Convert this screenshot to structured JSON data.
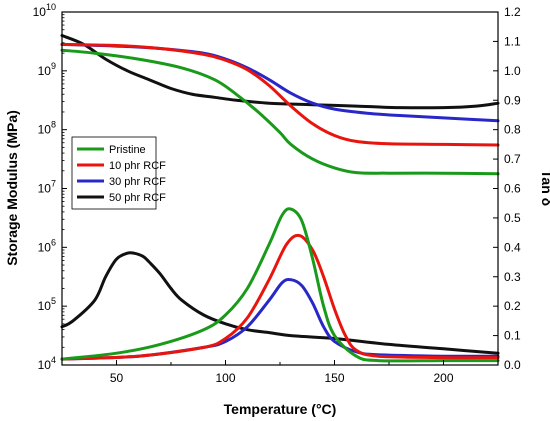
{
  "chart_data": {
    "type": "line",
    "xlabel": "Temperature (°C)",
    "ylabel_left": "Storage Modulus (MPa)",
    "ylabel_right": "Tan δ",
    "xlim": [
      25,
      225
    ],
    "xticks": [
      50,
      100,
      150,
      200
    ],
    "ylim_left_log10": [
      4,
      10
    ],
    "yscale_left": "log",
    "yticks_left": [
      {
        "base": "10",
        "exp": "4",
        "value": 4
      },
      {
        "base": "10",
        "exp": "5",
        "value": 5
      },
      {
        "base": "10",
        "exp": "6",
        "value": 6
      },
      {
        "base": "10",
        "exp": "7",
        "value": 7
      },
      {
        "base": "10",
        "exp": "8",
        "value": 8
      },
      {
        "base": "10",
        "exp": "9",
        "value": 9
      },
      {
        "base": "10",
        "exp": "10",
        "value": 10
      }
    ],
    "ylim_right": [
      0.0,
      1.2
    ],
    "yticks_right": [
      "0.0",
      "0.1",
      "0.2",
      "0.3",
      "0.4",
      "0.5",
      "0.6",
      "0.7",
      "0.8",
      "0.9",
      "1.0",
      "1.1",
      "1.2"
    ],
    "legend_position": "left-middle",
    "series": [
      {
        "name": "Pristine",
        "color": "#1a9a1a",
        "storage_modulus_log10": {
          "x": [
            25,
            40,
            60,
            80,
            95,
            105,
            115,
            125,
            130,
            140,
            150,
            160,
            175,
            200,
            225
          ],
          "y": [
            9.35,
            9.3,
            9.2,
            9.05,
            8.85,
            8.6,
            8.3,
            7.95,
            7.75,
            7.5,
            7.35,
            7.27,
            7.26,
            7.26,
            7.25
          ]
        },
        "tan_delta": {
          "x": [
            25,
            50,
            70,
            90,
            100,
            110,
            120,
            126,
            130,
            135,
            140,
            145,
            150,
            160,
            170,
            200,
            225
          ],
          "y": [
            0.02,
            0.04,
            0.07,
            0.12,
            0.17,
            0.26,
            0.41,
            0.51,
            0.53,
            0.49,
            0.36,
            0.2,
            0.1,
            0.03,
            0.015,
            0.015,
            0.015
          ]
        }
      },
      {
        "name": "10 phr RCF",
        "color": "#e8150f",
        "storage_modulus_log10": {
          "x": [
            25,
            50,
            70,
            90,
            100,
            110,
            120,
            130,
            140,
            150,
            160,
            175,
            200,
            225
          ],
          "y": [
            9.45,
            9.43,
            9.38,
            9.28,
            9.18,
            9.02,
            8.75,
            8.4,
            8.1,
            7.9,
            7.8,
            7.76,
            7.75,
            7.74
          ]
        },
        "tan_delta": {
          "x": [
            25,
            60,
            90,
            100,
            110,
            120,
            128,
            134,
            140,
            145,
            150,
            155,
            160,
            170,
            200,
            225
          ],
          "y": [
            0.02,
            0.03,
            0.06,
            0.09,
            0.16,
            0.29,
            0.41,
            0.44,
            0.39,
            0.3,
            0.19,
            0.1,
            0.05,
            0.03,
            0.025,
            0.025
          ]
        }
      },
      {
        "name": "30 phr RCF",
        "color": "#2a27c8",
        "storage_modulus_log10": {
          "x": [
            25,
            50,
            70,
            90,
            100,
            110,
            120,
            130,
            140,
            150,
            165,
            180,
            200,
            225
          ],
          "y": [
            9.45,
            9.42,
            9.38,
            9.3,
            9.2,
            9.05,
            8.85,
            8.62,
            8.45,
            8.35,
            8.28,
            8.24,
            8.2,
            8.15
          ]
        },
        "tan_delta": {
          "x": [
            25,
            60,
            90,
            100,
            110,
            120,
            126,
            130,
            135,
            140,
            145,
            150,
            160,
            170,
            200,
            225
          ],
          "y": [
            0.02,
            0.03,
            0.06,
            0.08,
            0.13,
            0.22,
            0.28,
            0.29,
            0.27,
            0.21,
            0.13,
            0.08,
            0.045,
            0.035,
            0.03,
            0.03
          ]
        }
      },
      {
        "name": "50 phr RCF",
        "color": "#111111",
        "storage_modulus_log10": null,
        "tan_delta": {
          "x": [
            25,
            30,
            40,
            45,
            50,
            55,
            58,
            62,
            65,
            70,
            75,
            80,
            90,
            100,
            110,
            120,
            130,
            150,
            175,
            200,
            225
          ],
          "y": [
            0.13,
            0.15,
            0.22,
            0.3,
            0.36,
            0.38,
            0.38,
            0.37,
            0.35,
            0.31,
            0.26,
            0.22,
            0.17,
            0.14,
            0.12,
            0.11,
            0.1,
            0.09,
            0.07,
            0.055,
            0.04
          ]
        },
        "tan_delta_upper": {
          "x": [
            25,
            35,
            45,
            55,
            65,
            75,
            85,
            95,
            105,
            120,
            140,
            160,
            180,
            200,
            215,
            225
          ],
          "y": [
            1.12,
            1.09,
            1.04,
            1.0,
            0.97,
            0.94,
            0.92,
            0.91,
            0.9,
            0.89,
            0.885,
            0.88,
            0.875,
            0.875,
            0.88,
            0.89
          ]
        }
      }
    ]
  },
  "legend": {
    "items": [
      {
        "label": "Pristine",
        "color": "#1a9a1a"
      },
      {
        "label": "10 phr RCF",
        "color": "#e8150f"
      },
      {
        "label": "30 phr RCF",
        "color": "#2a27c8"
      },
      {
        "label": "50 phr RCF",
        "color": "#111111"
      }
    ]
  },
  "colors": {
    "axis": "#000000",
    "background": "#ffffff"
  }
}
